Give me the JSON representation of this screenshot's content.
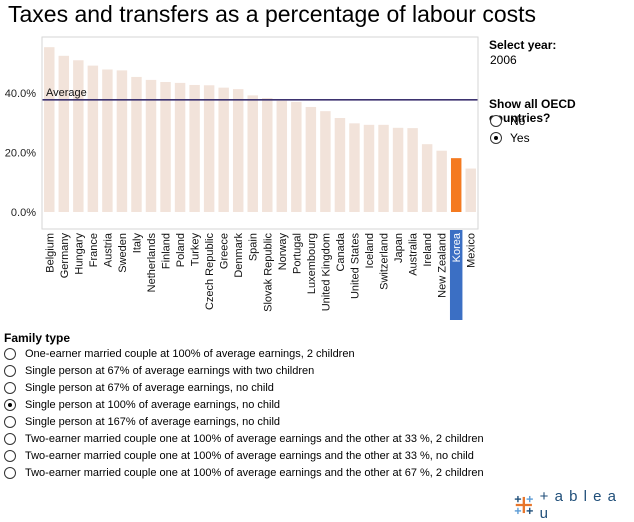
{
  "title": "Taxes and transfers as a percentage of labour costs",
  "year_filter": {
    "label": "Select year:",
    "value": "2006"
  },
  "oecd_filter": {
    "label": "Show all OECD countries?",
    "options": [
      {
        "label": "No",
        "checked": false
      },
      {
        "label": "Yes",
        "checked": true
      }
    ]
  },
  "family_filter": {
    "label": "Family type",
    "options": [
      {
        "label": "One-earner married couple at 100% of average earnings, 2 children",
        "checked": false
      },
      {
        "label": "Single person at 67% of average earnings with two children",
        "checked": false
      },
      {
        "label": "Single person at 67% of average earnings, no child",
        "checked": false
      },
      {
        "label": "Single person at 100% of average earnings, no child",
        "checked": true
      },
      {
        "label": "Single person at 167% of average earnings, no child",
        "checked": false
      },
      {
        "label": "Two-earner married couple one at 100% of average earnings and the other at 33 %, 2 children",
        "checked": false
      },
      {
        "label": "Two-earner married couple one at 100% of average earnings and the other at 33 %, no  child",
        "checked": false
      },
      {
        "label": "Two-earner married couple one at 100% of average earnings and the other at 67 %, 2 children",
        "checked": false
      }
    ]
  },
  "branding": {
    "logo_text": "+ a b l e a u"
  },
  "colors": {
    "bar": "#f2e3da",
    "highlight_bar": "#f47a20",
    "highlight_label_bg": "#3b6fc4",
    "average_line": "#3d3370",
    "axis": "#999999"
  },
  "chart_data": {
    "type": "bar",
    "categories": [
      "Belgium",
      "Germany",
      "Hungary",
      "France",
      "Austria",
      "Sweden",
      "Italy",
      "Netherlands",
      "Finland",
      "Poland",
      "Turkey",
      "Czech Republic",
      "Greece",
      "Denmark",
      "Spain",
      "Slovak Republic",
      "Norway",
      "Portugal",
      "Luxembourg",
      "United Kingdom",
      "Canada",
      "United States",
      "Iceland",
      "Switzerland",
      "Japan",
      "Australia",
      "Ireland",
      "New Zealand",
      "Korea",
      "Mexico"
    ],
    "values": [
      55.4,
      52.5,
      51.0,
      49.2,
      47.9,
      47.6,
      45.4,
      44.4,
      43.7,
      43.4,
      42.7,
      42.6,
      41.8,
      41.3,
      39.2,
      38.3,
      37.4,
      37.0,
      35.3,
      33.9,
      31.6,
      29.8,
      29.3,
      29.3,
      28.3,
      28.2,
      22.8,
      20.6,
      18.1,
      14.6
    ],
    "highlight": "Korea",
    "average": {
      "label": "Average",
      "value": 37.7
    },
    "yticks": [
      "0.0%",
      "20.0%",
      "40.0%"
    ],
    "ytick_values": [
      0,
      20,
      40
    ],
    "ylim": [
      0,
      60
    ],
    "xlabel": "",
    "ylabel": "",
    "grid": false
  }
}
